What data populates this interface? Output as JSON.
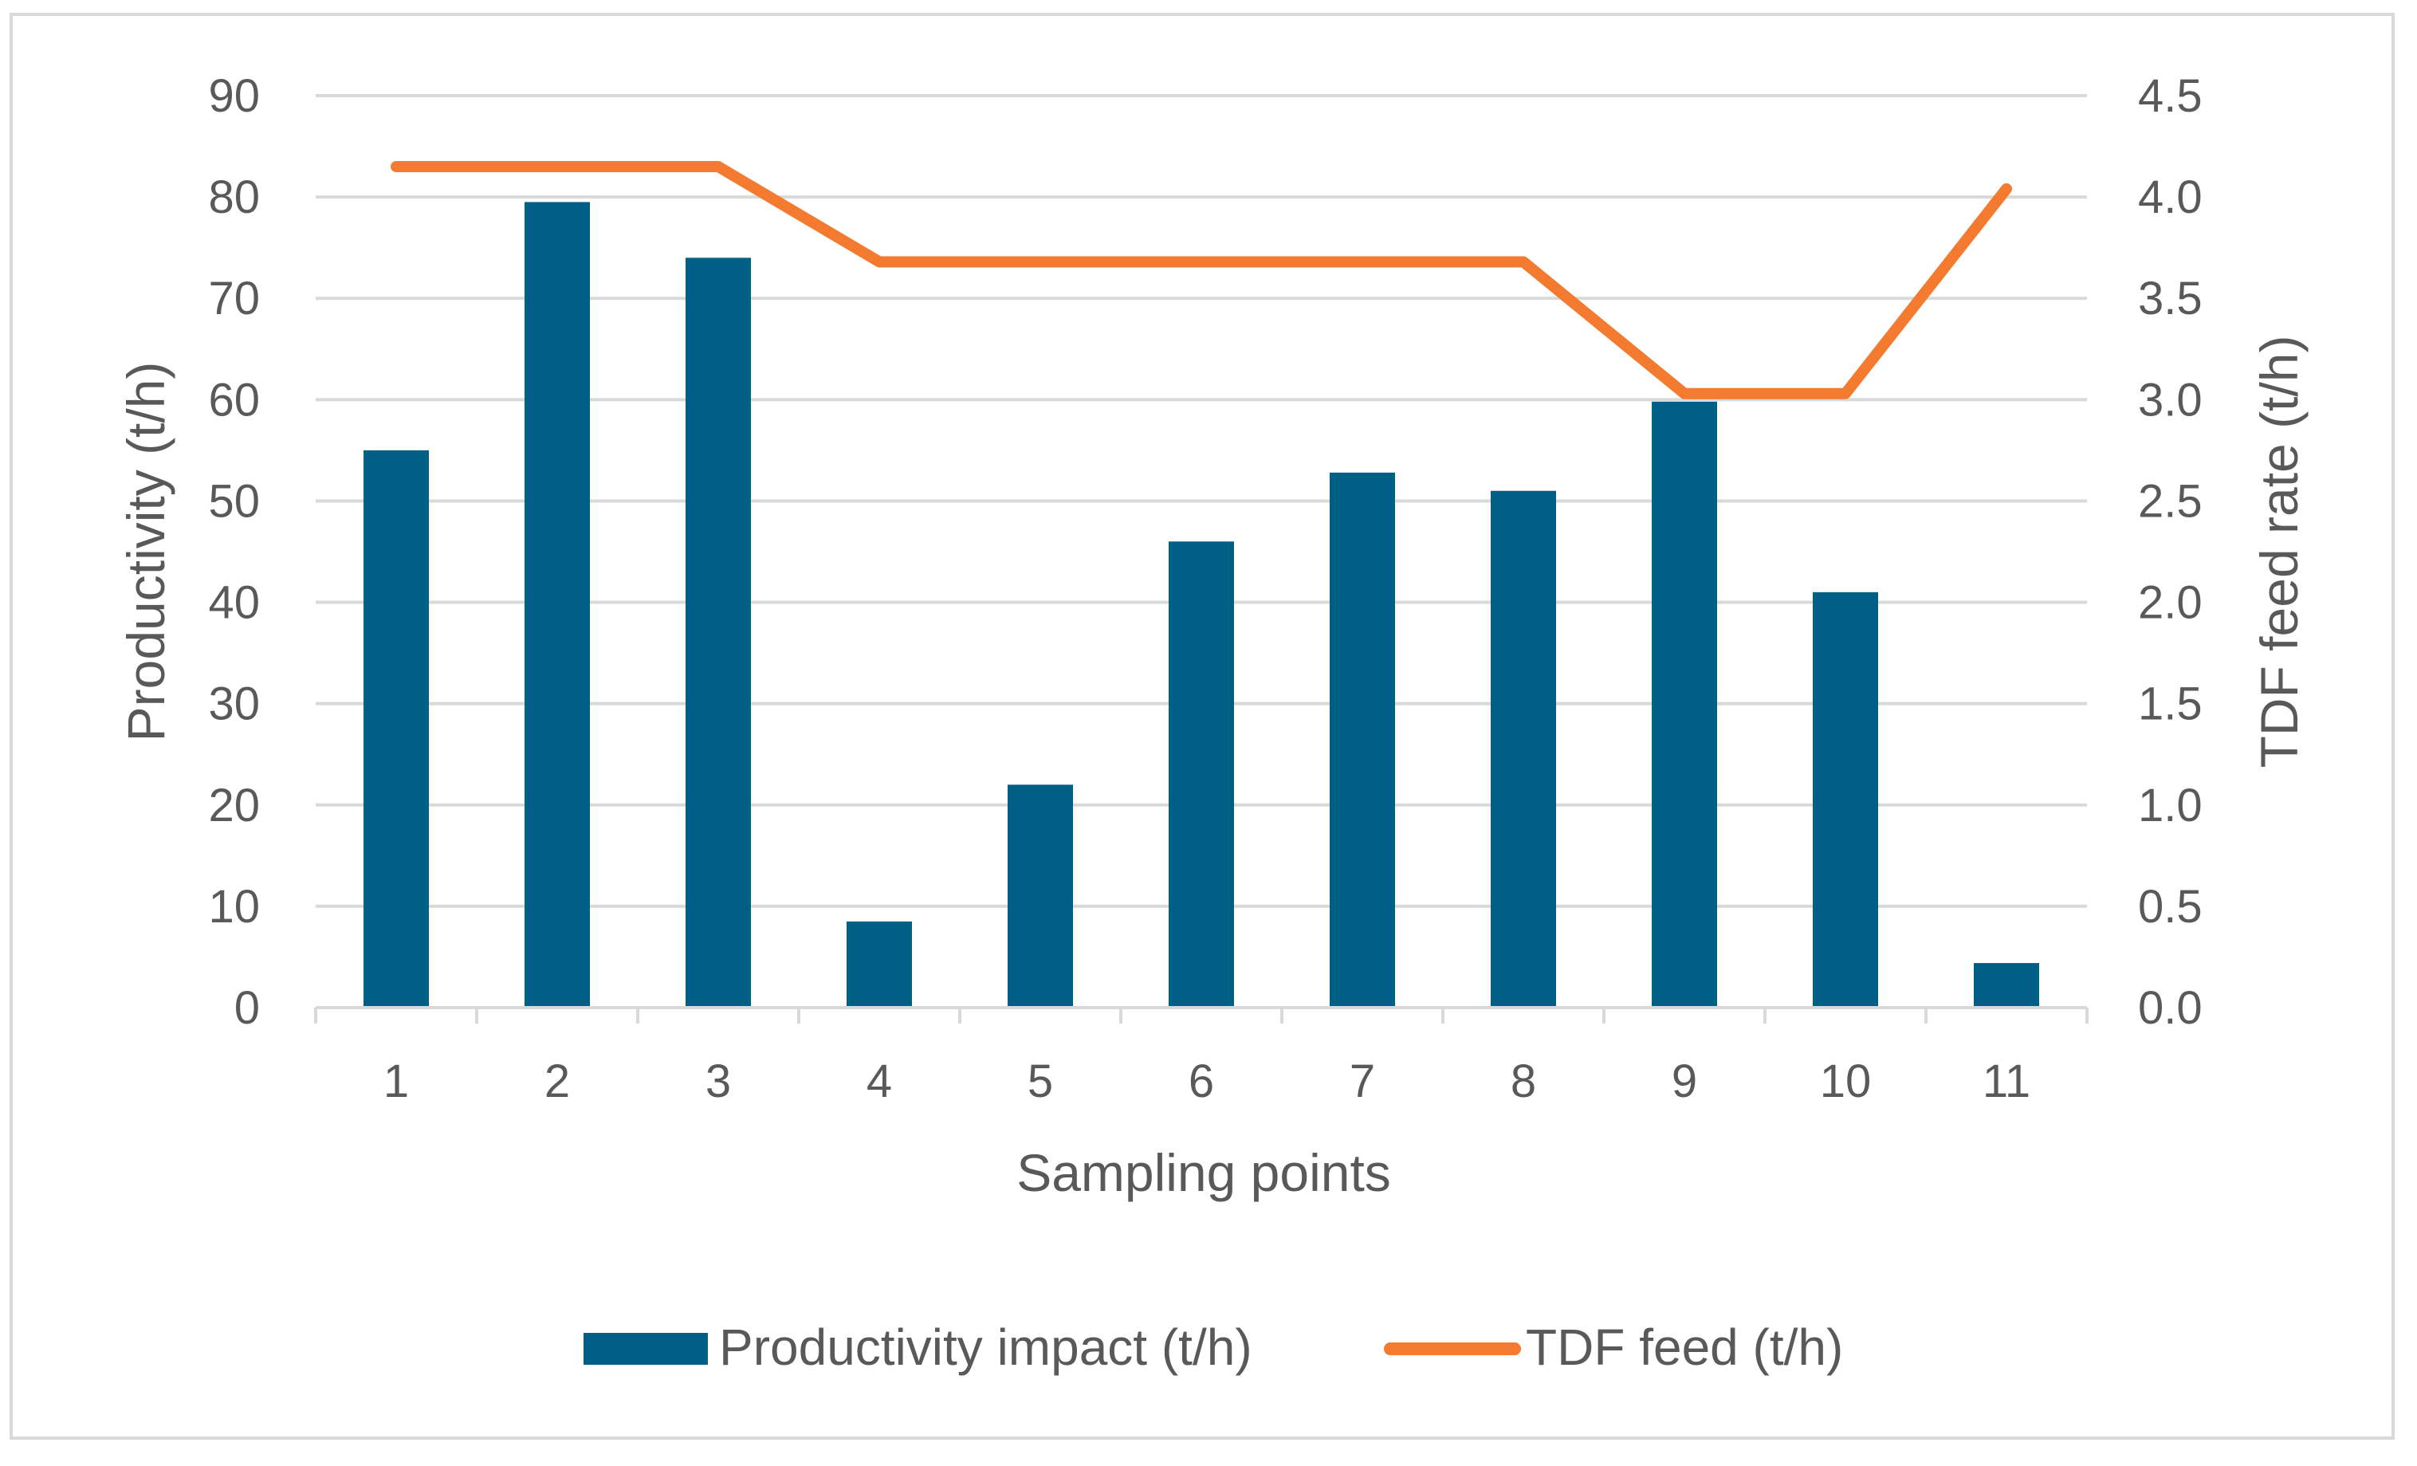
{
  "chart_data": {
    "type": "bar+line",
    "title": "",
    "xlabel": "Sampling points",
    "ylabel": "Productivity (t/h)",
    "y2label": "TDF feed rate (t/h)",
    "categories": [
      "1",
      "2",
      "3",
      "4",
      "5",
      "6",
      "7",
      "8",
      "9",
      "10",
      "11"
    ],
    "ylim": [
      0,
      90
    ],
    "y_ticks": [
      "0",
      "10",
      "20",
      "30",
      "40",
      "50",
      "60",
      "70",
      "80",
      "90"
    ],
    "y2lim": [
      0,
      4.5
    ],
    "y2_ticks": [
      "0.0",
      "0.5",
      "1.0",
      "1.5",
      "2.0",
      "2.5",
      "3.0",
      "3.5",
      "4.0",
      "4.5"
    ],
    "grid": true,
    "legend_position": "bottom",
    "series": [
      {
        "name": "Productivity impact (t/h)",
        "type": "bar",
        "axis": "left",
        "color": "#005F85",
        "values": [
          55,
          79.5,
          74,
          8.5,
          22,
          46,
          52.8,
          51,
          59.8,
          41,
          4.4
        ]
      },
      {
        "name": "TDF feed (t/h)",
        "type": "line",
        "axis": "right",
        "color": "#F47A2F",
        "values": [
          4.15,
          4.15,
          4.15,
          3.68,
          3.68,
          3.68,
          3.68,
          3.68,
          3.03,
          3.03,
          4.04
        ]
      }
    ]
  }
}
